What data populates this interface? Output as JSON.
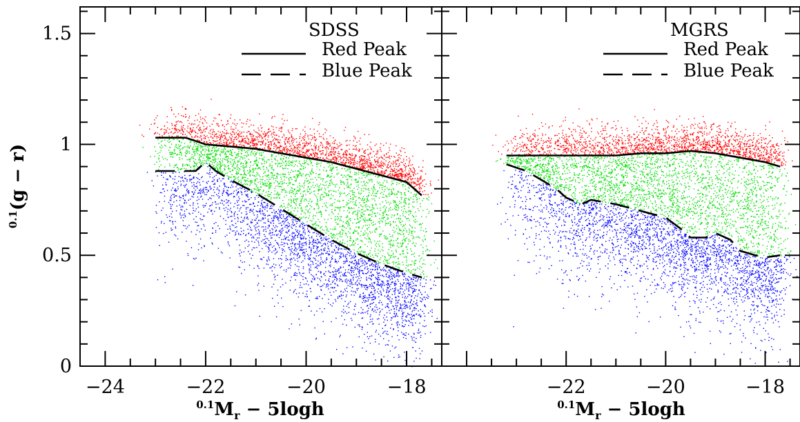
{
  "chart_data": [
    {
      "type": "scatter",
      "title": "SDSS",
      "xlabel_prefix": "0.1",
      "xlabel": "M",
      "xlabel_sub": "r",
      "xlabel_suffix": " − 5logh",
      "ylabel_prefix": "0.1",
      "ylabel": "(g − r)",
      "xlim": [
        -24.5,
        -17.3
      ],
      "ylim": [
        0,
        1.62
      ],
      "x_ticks": [
        -24,
        -22,
        -20,
        -18
      ],
      "x_tick_labels": [
        "−24",
        "−22",
        "−20",
        "−18"
      ],
      "y_ticks": [
        0,
        0.5,
        1,
        1.5
      ],
      "y_tick_labels": [
        "0",
        "0.5",
        "1",
        "1.5"
      ],
      "legend": {
        "position": "top-right",
        "entries": [
          "Red Peak",
          "Blue Peak"
        ]
      },
      "point_colors": {
        "red": "#ff0000",
        "green": "#00dd00",
        "blue": "#0000ff"
      },
      "red_peak": {
        "x": [
          -23.0,
          -22.4,
          -22.0,
          -21.5,
          -21.0,
          -20.5,
          -20.0,
          -19.5,
          -19.0,
          -18.5,
          -18.0,
          -17.7
        ],
        "y": [
          1.03,
          1.03,
          1.0,
          0.99,
          0.98,
          0.96,
          0.94,
          0.92,
          0.89,
          0.86,
          0.83,
          0.77
        ]
      },
      "blue_peak": {
        "x": [
          -23.0,
          -22.5,
          -22.2,
          -22.0,
          -21.8,
          -21.5,
          -21.0,
          -20.5,
          -20.0,
          -19.5,
          -19.0,
          -18.5,
          -18.0,
          -17.7
        ],
        "y": [
          0.88,
          0.88,
          0.88,
          0.92,
          0.88,
          0.84,
          0.78,
          0.71,
          0.64,
          0.57,
          0.51,
          0.46,
          0.42,
          0.4
        ]
      }
    },
    {
      "type": "scatter",
      "title": "MGRS",
      "xlabel_prefix": "0.1",
      "xlabel": "M",
      "xlabel_sub": "r",
      "xlabel_suffix": " − 5logh",
      "xlim": [
        -24.5,
        -17.3
      ],
      "ylim": [
        0,
        1.62
      ],
      "x_ticks": [
        -22,
        -20,
        -18
      ],
      "x_tick_labels": [
        "−22",
        "−20",
        "−18"
      ],
      "y_ticks": [
        0,
        0.5,
        1,
        1.5
      ],
      "legend": {
        "position": "top-right",
        "entries": [
          "Red Peak",
          "Blue Peak"
        ]
      },
      "point_colors": {
        "red": "#ff0000",
        "green": "#00dd00",
        "blue": "#0000ff"
      },
      "red_peak": {
        "x": [
          -23.2,
          -22.5,
          -22.0,
          -21.5,
          -21.0,
          -20.5,
          -20.0,
          -19.5,
          -19.0,
          -18.5,
          -18.0,
          -17.7
        ],
        "y": [
          0.95,
          0.95,
          0.95,
          0.95,
          0.95,
          0.96,
          0.96,
          0.97,
          0.96,
          0.94,
          0.92,
          0.9
        ]
      },
      "blue_peak": {
        "x": [
          -23.2,
          -22.8,
          -22.5,
          -22.2,
          -22.0,
          -21.7,
          -21.5,
          -21.0,
          -20.5,
          -20.0,
          -19.7,
          -19.5,
          -19.2,
          -19.0,
          -18.7,
          -18.5,
          -18.2,
          -18.0,
          -17.7
        ],
        "y": [
          0.91,
          0.88,
          0.84,
          0.8,
          0.76,
          0.73,
          0.75,
          0.73,
          0.7,
          0.67,
          0.62,
          0.58,
          0.58,
          0.6,
          0.57,
          0.52,
          0.5,
          0.49,
          0.5
        ]
      }
    }
  ]
}
